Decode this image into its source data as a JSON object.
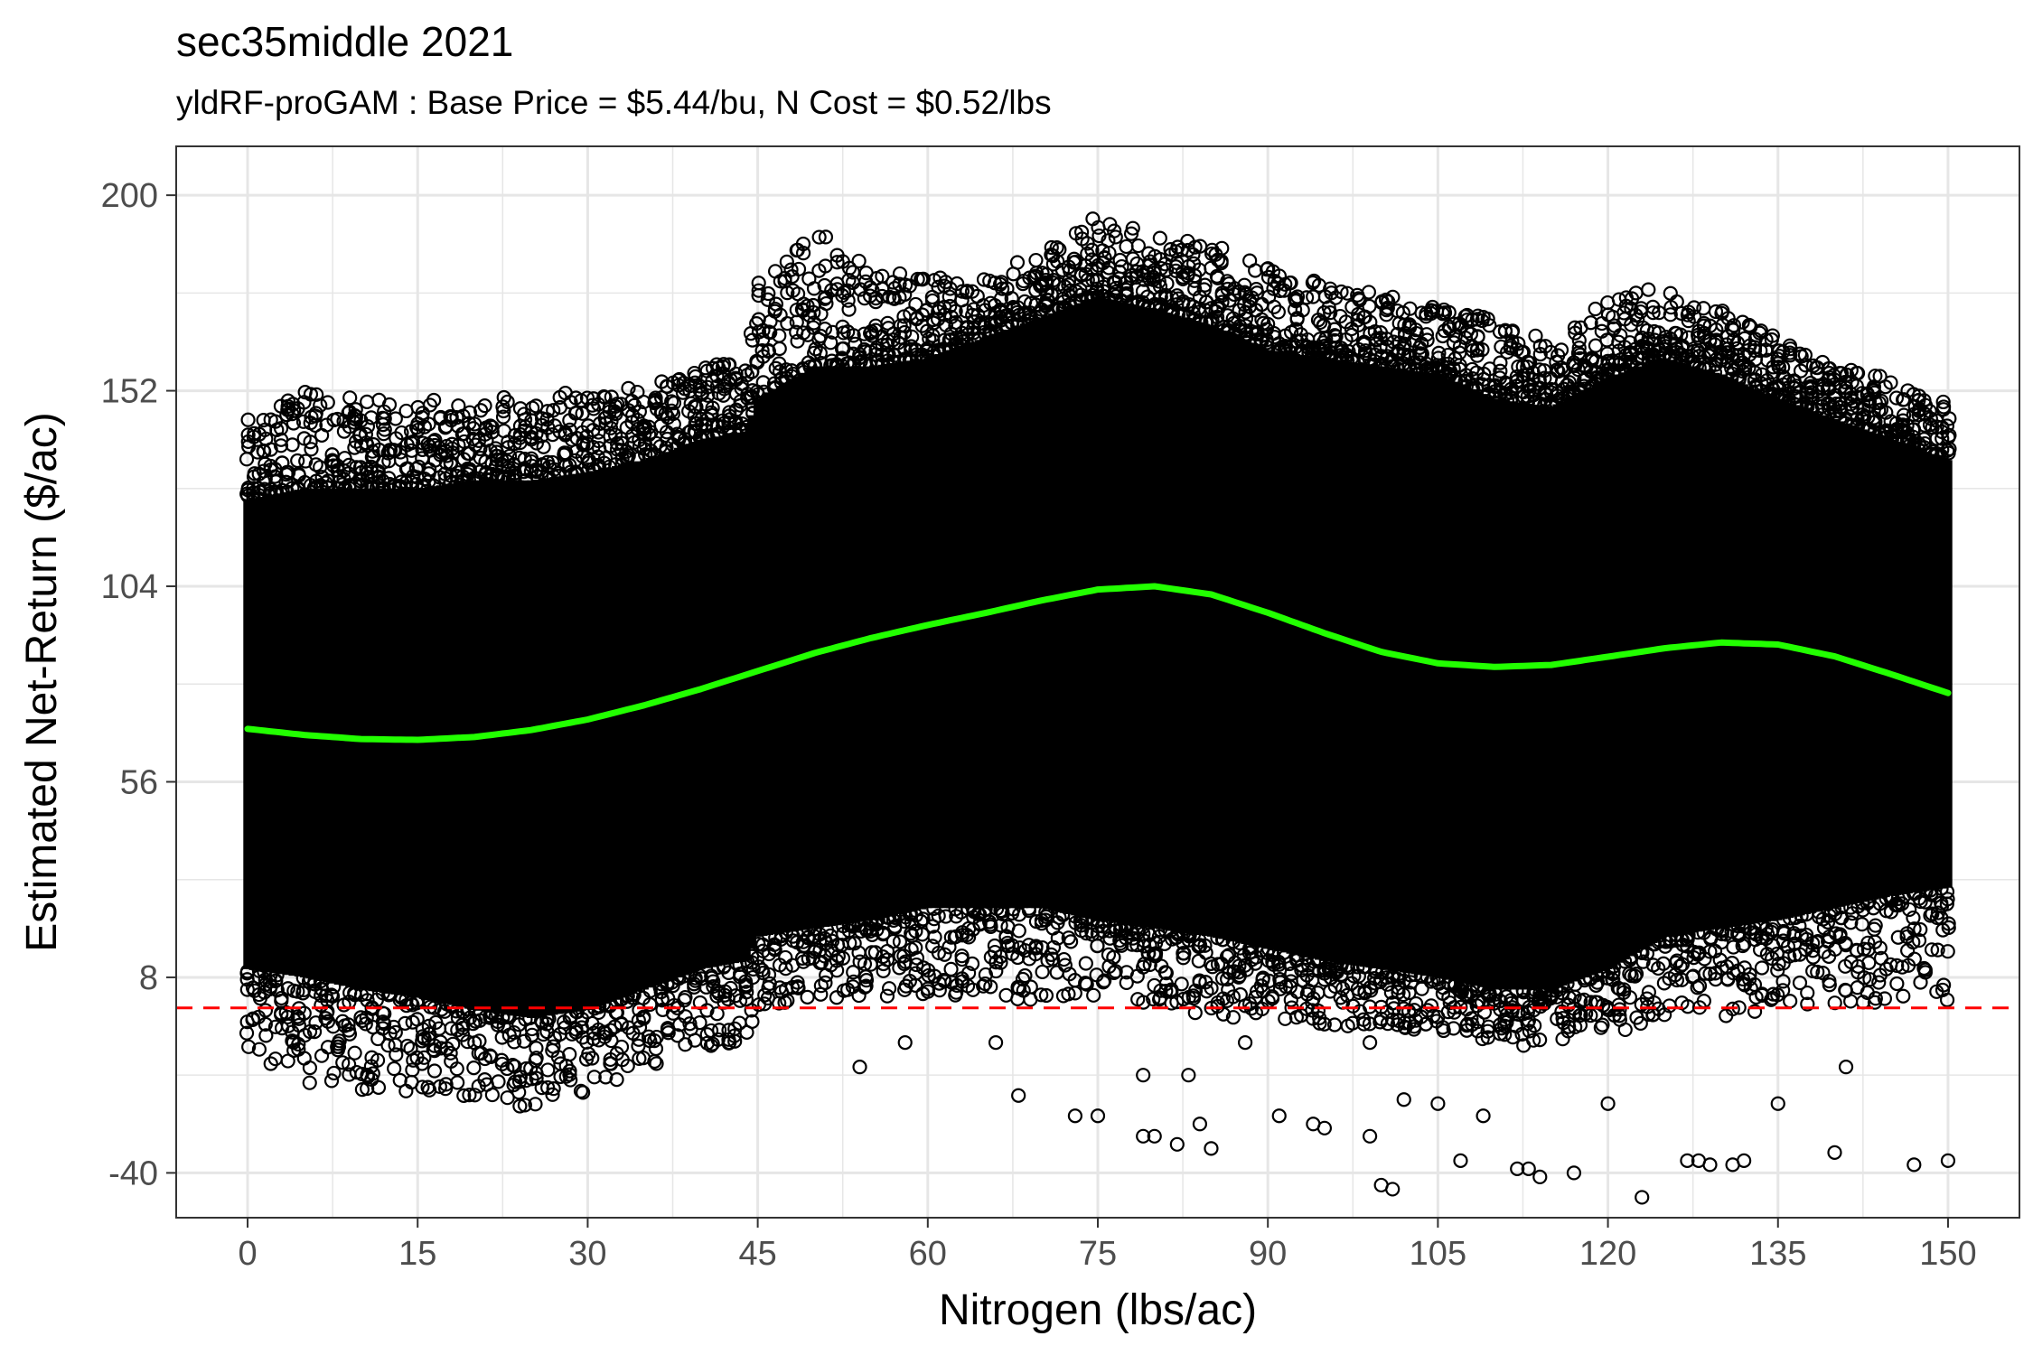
{
  "chart_data": {
    "type": "scatter",
    "title": "sec35middle 2021",
    "subtitle": "yldRF-proGAM : Base Price = $5.44/bu, N Cost = $0.52/lbs",
    "xlabel": "Nitrogen (lbs/ac)",
    "ylabel": "Estimated Net-Return ($/ac)",
    "xlim": [
      -6.3,
      156.3
    ],
    "ylim": [
      -51,
      212
    ],
    "x_ticks": [
      0,
      15,
      30,
      45,
      60,
      75,
      90,
      105,
      120,
      135,
      150
    ],
    "y_ticks": [
      -40,
      8,
      56,
      104,
      152,
      200
    ],
    "grid": true,
    "colors": {
      "points": "#000000",
      "smooth": "#22ff00",
      "reference": "#ff0000",
      "grid": "#e6e6e6",
      "border": "#333333"
    },
    "series": [
      {
        "kind": "scatter-envelope",
        "x_step": 0.5,
        "x": [
          0,
          5,
          10,
          15,
          20,
          25,
          30,
          35,
          40,
          44,
          45,
          50,
          55,
          60,
          65,
          70,
          75,
          80,
          85,
          90,
          95,
          100,
          105,
          110,
          115,
          120,
          125,
          130,
          135,
          140,
          145,
          150
        ],
        "upper": [
          145,
          152,
          151,
          151,
          150,
          151,
          152,
          153,
          158,
          160,
          180,
          192,
          182,
          180,
          180,
          186,
          196,
          190,
          188,
          183,
          178,
          176,
          173,
          170,
          164,
          175,
          178,
          172,
          165,
          158,
          155,
          150
        ],
        "lower": [
          -12,
          -18,
          -20,
          -21,
          -23,
          -24,
          -21,
          -15,
          -10,
          -8,
          0,
          2,
          3,
          4,
          3,
          2,
          2,
          1,
          -2,
          -3,
          -4,
          -5,
          -5,
          -8,
          -10,
          -8,
          -2,
          -2,
          0,
          1,
          2,
          2
        ],
        "core_upper": [
          125,
          128,
          128,
          128,
          130,
          130,
          132,
          135,
          140,
          142,
          150,
          158,
          158,
          160,
          165,
          170,
          175,
          172,
          168,
          162,
          160,
          158,
          156,
          150,
          148,
          155,
          160,
          156,
          150,
          145,
          140,
          135
        ],
        "core_lower": [
          10,
          8,
          5,
          3,
          0,
          -2,
          0,
          5,
          10,
          12,
          18,
          20,
          22,
          25,
          25,
          25,
          22,
          20,
          18,
          15,
          12,
          10,
          8,
          5,
          5,
          10,
          18,
          20,
          22,
          25,
          28,
          30
        ],
        "outliers": [
          [
            54,
            -14
          ],
          [
            58,
            -8
          ],
          [
            66,
            -8
          ],
          [
            68,
            -21
          ],
          [
            73,
            -26
          ],
          [
            75,
            -26
          ],
          [
            79,
            -16
          ],
          [
            79,
            -31
          ],
          [
            80,
            -31
          ],
          [
            82,
            -33
          ],
          [
            83,
            -16
          ],
          [
            84,
            -28
          ],
          [
            85,
            -34
          ],
          [
            88,
            -8
          ],
          [
            91,
            -26
          ],
          [
            94,
            -28
          ],
          [
            95,
            -29
          ],
          [
            99,
            -8
          ],
          [
            99,
            -31
          ],
          [
            100,
            -43
          ],
          [
            101,
            -44
          ],
          [
            102,
            -22
          ],
          [
            105,
            -23
          ],
          [
            107,
            -37
          ],
          [
            109,
            -26
          ],
          [
            112,
            -39
          ],
          [
            113,
            -39
          ],
          [
            114,
            -41
          ],
          [
            117,
            -40
          ],
          [
            120,
            -23
          ],
          [
            123,
            -46
          ],
          [
            127,
            -37
          ],
          [
            128,
            -37
          ],
          [
            129,
            -38
          ],
          [
            131,
            -38
          ],
          [
            132,
            -37
          ],
          [
            135,
            -23
          ],
          [
            140,
            -35
          ],
          [
            141,
            -14
          ],
          [
            147,
            -38
          ],
          [
            150,
            -37
          ]
        ]
      },
      {
        "kind": "smooth",
        "x": [
          0,
          5,
          10,
          15,
          20,
          25,
          30,
          35,
          40,
          45,
          50,
          55,
          60,
          65,
          70,
          75,
          80,
          85,
          90,
          95,
          100,
          105,
          110,
          115,
          120,
          125,
          130,
          135,
          140,
          145,
          150
        ],
        "y": [
          69,
          67.5,
          66.5,
          66.3,
          67,
          68.7,
          71.3,
          74.8,
          78.8,
          83.2,
          87.6,
          91.3,
          94.5,
          97.4,
          100.5,
          103.2,
          104,
          102,
          97.5,
          92.5,
          87.9,
          85.1,
          84.2,
          84.7,
          86.7,
          88.8,
          90.2,
          89.7,
          86.8,
          82.4,
          77.8
        ]
      },
      {
        "kind": "hline",
        "y": 0.5
      }
    ]
  }
}
